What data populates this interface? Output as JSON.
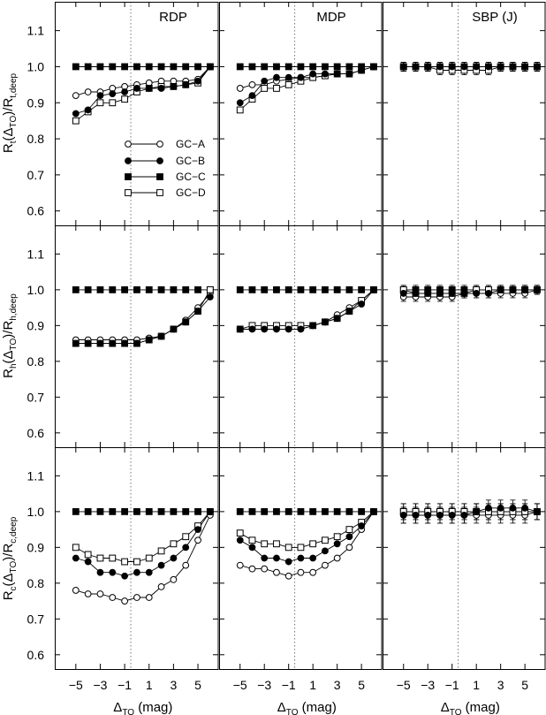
{
  "chart_data": {
    "type": "line",
    "columns": [
      "RDP",
      "MDP",
      "SBP (J)"
    ],
    "rows": [
      {
        "ylabel_main": "R",
        "ylabel_sub": "t",
        "ylabel_mid": "(Δ",
        "ylabel_mid_sub": "TO",
        "ylabel_tail": ")/R",
        "ylabel_tail_sub": "t,deep"
      },
      {
        "ylabel_main": "R",
        "ylabel_sub": "h",
        "ylabel_mid": "(Δ",
        "ylabel_mid_sub": "TO",
        "ylabel_tail": ")/R",
        "ylabel_tail_sub": "h,deep"
      },
      {
        "ylabel_main": "R",
        "ylabel_sub": "c",
        "ylabel_mid": "(Δ",
        "ylabel_mid_sub": "TO",
        "ylabel_tail": ")/R",
        "ylabel_tail_sub": "c,deep"
      }
    ],
    "xlabel": {
      "main": "Δ",
      "sub": "TO",
      "tail": " (mag)"
    },
    "x": [
      -5,
      -4,
      -3,
      -2,
      -1,
      0,
      1,
      2,
      3,
      4,
      5,
      6
    ],
    "xlim": [
      -6,
      6.3
    ],
    "ylim": [
      0.56,
      1.18
    ],
    "xticks": [
      -5,
      -3,
      -1,
      1,
      3,
      5
    ],
    "xtick_labels": [
      "−5",
      "−3",
      "−1",
      "1",
      "3",
      "5"
    ],
    "yticks": [
      0.6,
      0.7,
      0.8,
      0.9,
      1.0,
      1.1
    ],
    "ytick_labels": [
      "0.6",
      "0.7",
      "0.8",
      "0.9",
      "1.0",
      "1.1"
    ],
    "vline_x": -0.5,
    "legend": {
      "panel": "0-0",
      "placement": "center-left",
      "entries": [
        {
          "label": "GC−A",
          "marker": "open-circle"
        },
        {
          "label": "GC−B",
          "marker": "filled-circle"
        },
        {
          "label": "GC−C",
          "marker": "filled-square"
        },
        {
          "label": "GC−D",
          "marker": "open-square"
        }
      ]
    },
    "series_styles": {
      "A": {
        "shape": "circle",
        "filled": false
      },
      "B": {
        "shape": "circle",
        "filled": true
      },
      "C": {
        "shape": "square",
        "filled": true
      },
      "D": {
        "shape": "square",
        "filled": false
      }
    },
    "panels": [
      [
        {
          "A": [
            0.92,
            0.93,
            0.93,
            0.94,
            0.945,
            0.95,
            0.955,
            0.96,
            0.96,
            0.96,
            0.965,
            1.0
          ],
          "B": [
            0.87,
            0.88,
            0.92,
            0.925,
            0.93,
            0.94,
            0.94,
            0.94,
            0.945,
            0.95,
            0.96,
            1.0
          ],
          "C": [
            1,
            1,
            1,
            1,
            1,
            1,
            1,
            1,
            1,
            1,
            1,
            1
          ],
          "D": [
            0.85,
            0.875,
            0.9,
            0.9,
            0.91,
            0.93,
            0.94,
            0.945,
            0.945,
            0.95,
            0.955,
            1.0
          ]
        },
        {
          "A": [
            0.94,
            0.95,
            0.95,
            0.96,
            0.965,
            0.97,
            0.97,
            0.975,
            0.98,
            0.98,
            0.99,
            1.0
          ],
          "B": [
            0.9,
            0.92,
            0.96,
            0.97,
            0.97,
            0.97,
            0.98,
            0.98,
            0.98,
            0.98,
            0.99,
            1.0
          ],
          "C": [
            1,
            1,
            1,
            1,
            1,
            1,
            1,
            1,
            1,
            1,
            1,
            1
          ],
          "D": [
            0.88,
            0.91,
            0.94,
            0.94,
            0.95,
            0.96,
            0.97,
            0.975,
            0.98,
            0.98,
            0.99,
            1.0
          ]
        },
        {
          "A": [
            1,
            1,
            1,
            1,
            1,
            1,
            1,
            1,
            1,
            1,
            1,
            1
          ],
          "B": [
            1,
            1,
            1,
            1,
            1,
            1,
            1,
            1,
            1,
            1,
            1,
            1
          ],
          "C": [
            1,
            1,
            1,
            1,
            1,
            1,
            1,
            1,
            1,
            1,
            1,
            1
          ],
          "D": [
            1,
            1,
            1,
            0.99,
            0.99,
            0.99,
            0.99,
            0.99,
            1,
            1,
            1,
            1
          ]
        }
      ],
      [
        {
          "A": [
            0.86,
            0.86,
            0.86,
            0.86,
            0.86,
            0.86,
            0.865,
            0.87,
            0.89,
            0.915,
            0.95,
            0.99
          ],
          "B": [
            0.85,
            0.85,
            0.85,
            0.85,
            0.85,
            0.85,
            0.86,
            0.87,
            0.89,
            0.91,
            0.94,
            0.98
          ],
          "C": [
            1,
            1,
            1,
            1,
            1,
            1,
            1,
            1,
            1,
            1,
            1,
            1
          ],
          "D": [
            0.85,
            0.85,
            0.85,
            0.85,
            0.85,
            0.85,
            0.86,
            0.87,
            0.89,
            0.91,
            0.94,
            1.0
          ]
        },
        {
          "A": [
            0.89,
            0.89,
            0.89,
            0.89,
            0.89,
            0.89,
            0.9,
            0.91,
            0.93,
            0.95,
            0.97,
            1.0
          ],
          "B": [
            0.89,
            0.89,
            0.89,
            0.89,
            0.89,
            0.89,
            0.9,
            0.91,
            0.92,
            0.94,
            0.96,
            1.0
          ],
          "C": [
            1,
            1,
            1,
            1,
            1,
            1,
            1,
            1,
            1,
            1,
            1,
            1
          ],
          "D": [
            0.89,
            0.9,
            0.9,
            0.9,
            0.9,
            0.9,
            0.9,
            0.91,
            0.92,
            0.94,
            0.97,
            1.0
          ]
        },
        {
          "A": [
            0.98,
            0.98,
            0.98,
            0.98,
            0.98,
            0.99,
            0.99,
            0.99,
            0.99,
            0.99,
            0.99,
            1.0
          ],
          "B": [
            0.99,
            0.99,
            0.99,
            0.99,
            0.99,
            0.99,
            0.99,
            0.99,
            1,
            1,
            1,
            1
          ],
          "C": [
            1,
            1,
            1,
            1,
            1,
            1,
            1,
            1,
            1,
            1,
            1,
            1
          ],
          "D": [
            1,
            0.99,
            0.99,
            0.99,
            0.99,
            0.99,
            1,
            1,
            1,
            1,
            1,
            1
          ]
        }
      ],
      [
        {
          "A": [
            0.78,
            0.77,
            0.77,
            0.76,
            0.75,
            0.76,
            0.76,
            0.79,
            0.81,
            0.85,
            0.92,
            0.99
          ],
          "B": [
            0.87,
            0.86,
            0.83,
            0.83,
            0.82,
            0.83,
            0.83,
            0.85,
            0.87,
            0.9,
            0.95,
            1.0
          ],
          "C": [
            1,
            1,
            1,
            1,
            1,
            1,
            1,
            1,
            1,
            1,
            1,
            1
          ],
          "D": [
            0.9,
            0.88,
            0.87,
            0.87,
            0.86,
            0.86,
            0.87,
            0.89,
            0.91,
            0.93,
            0.96,
            1.0
          ]
        },
        {
          "A": [
            0.85,
            0.84,
            0.84,
            0.83,
            0.82,
            0.83,
            0.83,
            0.85,
            0.87,
            0.9,
            0.95,
            1.0
          ],
          "B": [
            0.92,
            0.9,
            0.87,
            0.87,
            0.86,
            0.87,
            0.87,
            0.89,
            0.91,
            0.93,
            0.96,
            1.0
          ],
          "C": [
            1,
            1,
            1,
            1,
            1,
            1,
            1,
            1,
            1,
            1,
            1,
            1
          ],
          "D": [
            0.94,
            0.92,
            0.91,
            0.91,
            0.9,
            0.9,
            0.91,
            0.92,
            0.93,
            0.95,
            0.97,
            1.0
          ]
        },
        {
          "A": [
            0.99,
            0.99,
            0.99,
            0.99,
            0.99,
            0.99,
            0.99,
            0.99,
            0.99,
            0.99,
            0.99,
            1.0
          ],
          "B": [
            0.99,
            0.99,
            0.99,
            0.99,
            0.99,
            0.99,
            1.0,
            1.01,
            1.01,
            1.01,
            1.01,
            1.0
          ],
          "C": [
            1,
            1,
            1,
            1,
            1,
            1,
            1,
            1,
            1,
            1,
            1,
            1
          ],
          "D": [
            1,
            1,
            1,
            1,
            1,
            1,
            1,
            1,
            1,
            1,
            1,
            1
          ]
        }
      ]
    ]
  }
}
